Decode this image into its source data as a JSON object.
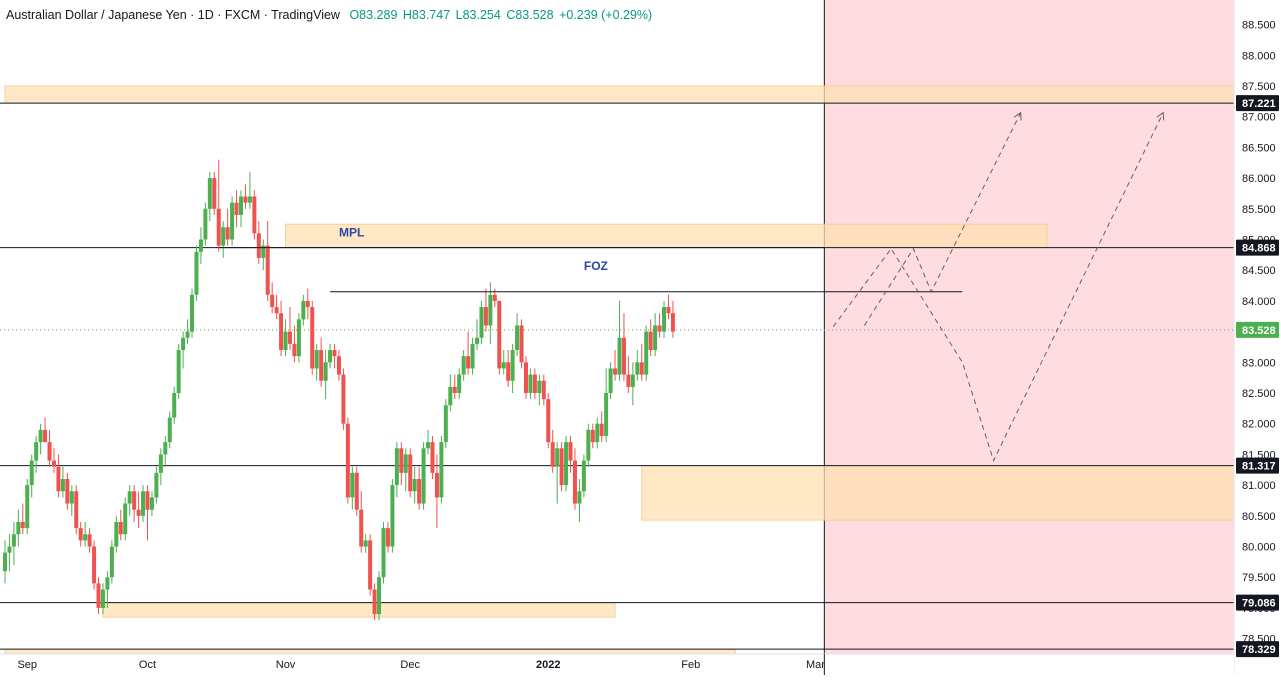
{
  "header": {
    "title": "Australian Dollar / Japanese Yen · 1D · FXCM · TradingView",
    "open": "O83.289",
    "high": "H83.747",
    "low": "L83.254",
    "close": "C83.528",
    "change": "+0.239 (+0.29%)"
  },
  "colors": {
    "up": "#4caf50",
    "down": "#ef5350",
    "zone": "#ffe0b2",
    "forecast_bg": "#ffcdd2",
    "price_label_dark": "#131722",
    "price_label_current": "#4caf50",
    "annotation_text": "#2a4aa0"
  },
  "chart_data": {
    "type": "candlestick",
    "y_axis": {
      "range": [
        78.25,
        88.9
      ],
      "ticks": [
        "78.500",
        "79.000",
        "79.500",
        "80.000",
        "80.500",
        "81.000",
        "81.500",
        "82.000",
        "82.500",
        "83.000",
        "83.500",
        "84.000",
        "84.500",
        "85.000",
        "85.500",
        "86.000",
        "86.500",
        "87.000",
        "87.500",
        "88.000",
        "88.500"
      ]
    },
    "x_axis": {
      "labels": [
        {
          "label": "Sep",
          "day": 5
        },
        {
          "label": "Oct",
          "day": 32
        },
        {
          "label": "Nov",
          "day": 63
        },
        {
          "label": "Dec",
          "day": 91
        },
        {
          "label": "2022",
          "day": 122
        },
        {
          "label": "Feb",
          "day": 154
        },
        {
          "label": "Mar",
          "day": 182
        }
      ],
      "day_range": [
        0,
        276
      ]
    },
    "price_labels": [
      {
        "value": "87.221",
        "price": 87.221,
        "style": "dark"
      },
      {
        "value": "84.868",
        "price": 84.868,
        "style": "dark"
      },
      {
        "value": "83.528",
        "price": 83.528,
        "style": "current"
      },
      {
        "value": "81.317",
        "price": 81.317,
        "style": "dark"
      },
      {
        "value": "79.086",
        "price": 79.086,
        "style": "dark"
      },
      {
        "value": "78.329",
        "price": 78.329,
        "style": "dark"
      }
    ],
    "horizontal_lines": [
      87.221,
      84.868,
      81.317,
      79.086,
      78.329
    ],
    "zones": [
      {
        "day_from": 0,
        "day_to": 276,
        "top": 87.5,
        "bottom": 87.221
      },
      {
        "day_from": 63,
        "day_to": 234,
        "top": 85.25,
        "bottom": 84.868
      },
      {
        "day_from": 143,
        "day_to": 276,
        "top": 81.317,
        "bottom": 80.43
      },
      {
        "day_from": 22,
        "day_to": 137,
        "top": 79.086,
        "bottom": 78.85
      },
      {
        "day_from": 0,
        "day_to": 164,
        "top": 78.329,
        "bottom": 78.2
      }
    ],
    "forecast_start_day": 184,
    "annotations": [
      {
        "text": "MPL",
        "day": 75,
        "price": 85.05
      },
      {
        "text": "FOZ",
        "day": 130,
        "price": 84.5
      }
    ],
    "foz_line": {
      "day_from": 73,
      "day_to": 215,
      "price": 84.15
    },
    "mpl_line": {
      "day_from": 48,
      "day_to": 184,
      "price": 84.868
    },
    "projection_paths": [
      [
        [
          186,
          83.58
        ],
        [
          199,
          84.85
        ],
        [
          215,
          83.0
        ],
        [
          222,
          81.4
        ],
        [
          260,
          87.05
        ]
      ],
      [
        [
          193,
          83.6
        ],
        [
          204,
          84.85
        ],
        [
          208,
          84.15
        ],
        [
          228,
          87.05
        ]
      ]
    ],
    "candles": [
      [
        0,
        79.6,
        80.1,
        79.4,
        79.9
      ],
      [
        1,
        79.9,
        80.2,
        79.6,
        80.0
      ],
      [
        2,
        80.0,
        80.4,
        79.7,
        80.2
      ],
      [
        3,
        80.2,
        80.6,
        80.0,
        80.4
      ],
      [
        4,
        80.4,
        80.7,
        80.2,
        80.3
      ],
      [
        5,
        80.3,
        81.1,
        80.2,
        81.0
      ],
      [
        6,
        81.0,
        81.5,
        80.8,
        81.4
      ],
      [
        7,
        81.4,
        81.8,
        81.2,
        81.7
      ],
      [
        8,
        81.7,
        82.0,
        81.5,
        81.9
      ],
      [
        9,
        81.9,
        82.1,
        81.7,
        81.7
      ],
      [
        10,
        81.7,
        81.9,
        81.3,
        81.4
      ],
      [
        11,
        81.4,
        81.6,
        81.2,
        81.3
      ],
      [
        12,
        81.3,
        81.5,
        80.8,
        80.9
      ],
      [
        13,
        80.9,
        81.3,
        80.8,
        81.1
      ],
      [
        14,
        81.1,
        81.2,
        80.6,
        80.7
      ],
      [
        15,
        80.7,
        81.0,
        80.5,
        80.9
      ],
      [
        16,
        80.9,
        81.0,
        80.2,
        80.3
      ],
      [
        17,
        80.3,
        80.4,
        80.0,
        80.1
      ],
      [
        18,
        80.1,
        80.4,
        80.0,
        80.2
      ],
      [
        19,
        80.2,
        80.3,
        79.9,
        80.0
      ],
      [
        20,
        80.0,
        80.1,
        79.3,
        79.4
      ],
      [
        21,
        79.4,
        79.5,
        78.9,
        79.0
      ],
      [
        22,
        79.0,
        79.4,
        78.9,
        79.3
      ],
      [
        23,
        79.3,
        79.6,
        79.0,
        79.5
      ],
      [
        24,
        79.5,
        80.1,
        79.4,
        80.0
      ],
      [
        25,
        80.0,
        80.5,
        79.9,
        80.4
      ],
      [
        26,
        80.4,
        80.6,
        80.1,
        80.2
      ],
      [
        27,
        80.2,
        80.8,
        80.1,
        80.7
      ],
      [
        28,
        80.7,
        81.0,
        80.5,
        80.9
      ],
      [
        29,
        80.9,
        81.0,
        80.4,
        80.6
      ],
      [
        30,
        80.6,
        80.9,
        80.3,
        80.5
      ],
      [
        31,
        80.5,
        81.0,
        80.4,
        80.9
      ],
      [
        32,
        80.9,
        81.0,
        80.1,
        80.6
      ],
      [
        33,
        80.6,
        80.9,
        80.5,
        80.8
      ],
      [
        34,
        80.8,
        81.3,
        80.7,
        81.2
      ],
      [
        35,
        81.2,
        81.6,
        81.0,
        81.5
      ],
      [
        36,
        81.5,
        81.8,
        81.3,
        81.7
      ],
      [
        37,
        81.7,
        82.2,
        81.6,
        82.1
      ],
      [
        38,
        82.1,
        82.6,
        82.0,
        82.5
      ],
      [
        39,
        82.5,
        83.3,
        82.4,
        83.2
      ],
      [
        40,
        83.2,
        83.5,
        82.9,
        83.4
      ],
      [
        41,
        83.4,
        83.7,
        83.3,
        83.5
      ],
      [
        42,
        83.5,
        84.2,
        83.4,
        84.1
      ],
      [
        43,
        84.1,
        84.9,
        84.0,
        84.8
      ],
      [
        44,
        84.8,
        85.2,
        84.6,
        85.0
      ],
      [
        45,
        85.0,
        85.6,
        84.9,
        85.5
      ],
      [
        46,
        85.5,
        86.1,
        85.3,
        86.0
      ],
      [
        47,
        86.0,
        86.1,
        85.4,
        85.5
      ],
      [
        48,
        85.5,
        86.3,
        84.8,
        84.9
      ],
      [
        49,
        84.9,
        85.3,
        84.7,
        85.2
      ],
      [
        50,
        85.2,
        85.5,
        84.9,
        85.0
      ],
      [
        51,
        85.0,
        85.7,
        84.9,
        85.6
      ],
      [
        52,
        85.6,
        85.8,
        85.2,
        85.4
      ],
      [
        53,
        85.4,
        85.8,
        85.2,
        85.7
      ],
      [
        54,
        85.7,
        85.9,
        85.5,
        85.6
      ],
      [
        55,
        85.6,
        86.1,
        85.5,
        85.7
      ],
      [
        56,
        85.7,
        85.8,
        85.0,
        85.1
      ],
      [
        57,
        85.1,
        85.3,
        84.6,
        84.7
      ],
      [
        58,
        84.7,
        85.0,
        84.5,
        84.9
      ],
      [
        59,
        84.9,
        85.3,
        84.0,
        84.1
      ],
      [
        60,
        84.1,
        84.3,
        83.8,
        83.9
      ],
      [
        61,
        83.9,
        84.1,
        83.7,
        83.8
      ],
      [
        62,
        83.8,
        84.0,
        83.1,
        83.2
      ],
      [
        63,
        83.2,
        83.7,
        83.1,
        83.5
      ],
      [
        64,
        83.5,
        83.9,
        83.2,
        83.3
      ],
      [
        65,
        83.3,
        83.6,
        83.0,
        83.1
      ],
      [
        66,
        83.1,
        83.8,
        83.0,
        83.7
      ],
      [
        67,
        83.7,
        84.1,
        83.6,
        84.0
      ],
      [
        68,
        84.0,
        84.2,
        83.7,
        83.9
      ],
      [
        69,
        83.9,
        84.0,
        82.8,
        82.9
      ],
      [
        70,
        82.9,
        83.3,
        82.7,
        83.2
      ],
      [
        71,
        83.2,
        83.4,
        82.6,
        82.7
      ],
      [
        72,
        82.7,
        83.2,
        82.4,
        83.0
      ],
      [
        73,
        83.0,
        83.3,
        82.9,
        83.2
      ],
      [
        74,
        83.2,
        83.3,
        82.9,
        83.1
      ],
      [
        75,
        83.1,
        83.2,
        82.7,
        82.8
      ],
      [
        76,
        82.8,
        82.9,
        81.9,
        82.0
      ],
      [
        77,
        82.0,
        82.1,
        80.7,
        80.8
      ],
      [
        78,
        80.8,
        81.3,
        80.6,
        81.2
      ],
      [
        79,
        81.2,
        81.3,
        80.5,
        80.6
      ],
      [
        80,
        80.6,
        80.9,
        79.9,
        80.0
      ],
      [
        81,
        80.0,
        80.2,
        79.9,
        80.1
      ],
      [
        82,
        80.1,
        80.2,
        79.2,
        79.3
      ],
      [
        83,
        79.3,
        79.4,
        78.8,
        78.9
      ],
      [
        84,
        78.9,
        79.6,
        78.8,
        79.5
      ],
      [
        85,
        79.5,
        80.4,
        79.4,
        80.3
      ],
      [
        86,
        80.3,
        80.4,
        79.9,
        80.0
      ],
      [
        87,
        80.0,
        81.1,
        79.9,
        81.0
      ],
      [
        88,
        81.0,
        81.7,
        80.8,
        81.6
      ],
      [
        89,
        81.6,
        81.7,
        81.0,
        81.2
      ],
      [
        90,
        81.2,
        81.6,
        80.9,
        81.5
      ],
      [
        91,
        81.5,
        81.6,
        80.8,
        80.9
      ],
      [
        92,
        80.9,
        81.3,
        80.7,
        81.1
      ],
      [
        93,
        81.1,
        81.3,
        80.6,
        80.7
      ],
      [
        94,
        80.7,
        81.7,
        80.6,
        81.6
      ],
      [
        95,
        81.6,
        81.9,
        81.5,
        81.7
      ],
      [
        96,
        81.7,
        81.8,
        81.1,
        81.2
      ],
      [
        97,
        81.2,
        81.5,
        80.3,
        80.8
      ],
      [
        98,
        80.8,
        81.8,
        80.7,
        81.7
      ],
      [
        99,
        81.7,
        82.4,
        81.6,
        82.3
      ],
      [
        100,
        82.3,
        82.8,
        82.2,
        82.6
      ],
      [
        101,
        82.6,
        82.8,
        82.4,
        82.5
      ],
      [
        102,
        82.5,
        82.9,
        82.4,
        82.8
      ],
      [
        103,
        82.8,
        83.2,
        82.7,
        83.1
      ],
      [
        104,
        83.1,
        83.5,
        82.8,
        82.9
      ],
      [
        105,
        82.9,
        83.4,
        82.8,
        83.3
      ],
      [
        106,
        83.3,
        83.7,
        83.2,
        83.4
      ],
      [
        107,
        83.4,
        84.0,
        83.3,
        83.9
      ],
      [
        108,
        83.9,
        84.2,
        83.5,
        83.6
      ],
      [
        109,
        83.6,
        84.3,
        83.3,
        84.1
      ],
      [
        110,
        84.1,
        84.2,
        83.9,
        84.0
      ],
      [
        111,
        84.0,
        84.0,
        82.8,
        82.9
      ],
      [
        112,
        82.9,
        83.2,
        82.8,
        83.0
      ],
      [
        113,
        83.0,
        83.2,
        82.6,
        82.7
      ],
      [
        114,
        82.7,
        83.3,
        82.5,
        83.2
      ],
      [
        115,
        83.2,
        83.8,
        83.1,
        83.6
      ],
      [
        116,
        83.6,
        83.7,
        82.9,
        83.0
      ],
      [
        117,
        83.0,
        83.1,
        82.4,
        82.5
      ],
      [
        118,
        82.5,
        82.9,
        82.4,
        82.8
      ],
      [
        119,
        82.8,
        82.9,
        82.4,
        82.5
      ],
      [
        120,
        82.5,
        82.8,
        82.3,
        82.7
      ],
      [
        121,
        82.7,
        82.8,
        82.3,
        82.4
      ],
      [
        122,
        82.4,
        82.5,
        81.6,
        81.7
      ],
      [
        123,
        81.7,
        81.9,
        81.2,
        81.3
      ],
      [
        124,
        81.3,
        81.7,
        80.7,
        81.6
      ],
      [
        125,
        81.6,
        81.7,
        80.9,
        81.0
      ],
      [
        126,
        81.0,
        81.8,
        80.9,
        81.7
      ],
      [
        127,
        81.7,
        81.8,
        81.2,
        81.4
      ],
      [
        128,
        81.4,
        81.6,
        80.6,
        80.7
      ],
      [
        129,
        80.7,
        81.1,
        80.4,
        80.9
      ],
      [
        130,
        80.9,
        81.5,
        80.8,
        81.4
      ],
      [
        131,
        81.4,
        82.0,
        81.3,
        81.9
      ],
      [
        132,
        81.9,
        82.0,
        81.6,
        81.7
      ],
      [
        133,
        81.7,
        82.1,
        81.6,
        82.0
      ],
      [
        134,
        82.0,
        82.2,
        81.7,
        81.8
      ],
      [
        135,
        81.8,
        82.9,
        81.7,
        82.5
      ],
      [
        136,
        82.5,
        83.0,
        82.4,
        82.9
      ],
      [
        137,
        82.9,
        83.2,
        82.7,
        82.8
      ],
      [
        138,
        82.8,
        84.0,
        82.7,
        83.4
      ],
      [
        139,
        83.4,
        83.8,
        82.7,
        82.8
      ],
      [
        140,
        82.8,
        83.1,
        82.5,
        82.6
      ],
      [
        141,
        82.6,
        83.0,
        82.3,
        82.8
      ],
      [
        142,
        82.8,
        83.2,
        82.7,
        83.0
      ],
      [
        143,
        83.0,
        83.3,
        82.7,
        82.8
      ],
      [
        144,
        82.8,
        83.6,
        82.7,
        83.5
      ],
      [
        145,
        83.5,
        83.7,
        83.1,
        83.2
      ],
      [
        146,
        83.2,
        83.8,
        83.1,
        83.6
      ],
      [
        147,
        83.6,
        83.8,
        83.4,
        83.5
      ],
      [
        148,
        83.5,
        84.0,
        83.4,
        83.9
      ],
      [
        149,
        83.9,
        84.1,
        83.7,
        83.8
      ],
      [
        150,
        83.8,
        84.0,
        83.4,
        83.5
      ]
    ]
  }
}
